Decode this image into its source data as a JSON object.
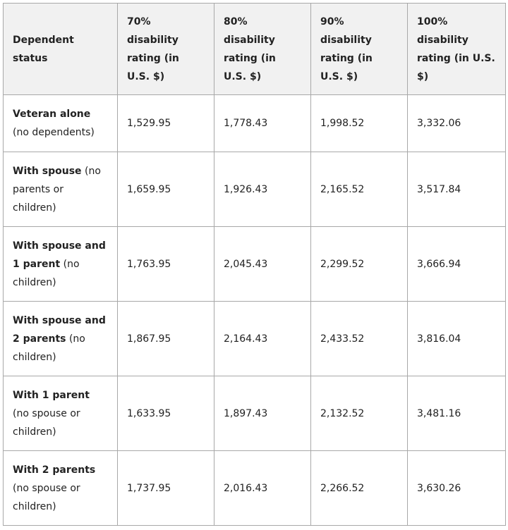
{
  "table": {
    "header": [
      "Dependent status",
      "70% disability rating (in U.S. $)",
      "80% disability rating (in U.S. $)",
      "90% disability rating (in U.S. $)",
      "100% disability rating (in U.S. $)"
    ],
    "rows": [
      {
        "status_bold": "Veteran alone",
        "status_note": "(no dependents)",
        "values": [
          "1,529.95",
          "1,778.43",
          "1,998.52",
          "3,332.06"
        ]
      },
      {
        "status_bold": "With spouse",
        "status_note": "(no parents or children)",
        "values": [
          "1,659.95",
          "1,926.43",
          "2,165.52",
          "3,517.84"
        ]
      },
      {
        "status_bold": "With spouse and 1 parent",
        "status_note": "(no children)",
        "values": [
          "1,763.95",
          "2,045.43",
          "2,299.52",
          "3,666.94"
        ]
      },
      {
        "status_bold": "With spouse and 2 parents",
        "status_note": "(no children)",
        "values": [
          "1,867.95",
          "2,164.43",
          "2,433.52",
          "3,816.04"
        ]
      },
      {
        "status_bold": "With 1 parent",
        "status_note": "(no spouse or children)",
        "values": [
          "1,633.95",
          "1,897.43",
          "2,132.52",
          "3,481.16"
        ]
      },
      {
        "status_bold": "With 2 parents",
        "status_note": "(no spouse or children)",
        "values": [
          "1,737.95",
          "2,016.43",
          "2,266.52",
          "3,630.26"
        ]
      }
    ]
  }
}
